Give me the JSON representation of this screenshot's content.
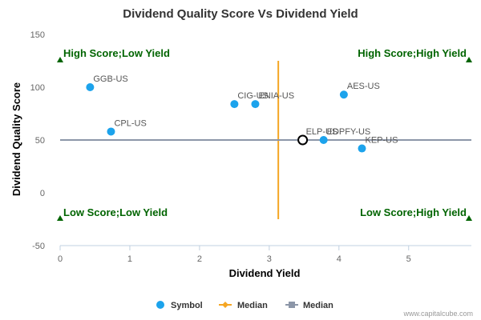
{
  "chart_data": {
    "type": "scatter",
    "title": "Dividend Quality Score Vs Dividend Yield",
    "xlabel": "Dividend Yield",
    "ylabel": "Dividend Quality Score",
    "xlim": [
      0,
      5.9
    ],
    "ylim": [
      -50,
      150
    ],
    "xticks": [
      0,
      1,
      2,
      3,
      4,
      5
    ],
    "yticks": [
      -50,
      0,
      50,
      100,
      150
    ],
    "grid": false,
    "legend_position": "bottom",
    "colors": {
      "points": "#1ca3ec",
      "median_x": "#f5a623",
      "median_y": "#8c96a8",
      "quadrant_text": "#006400",
      "highlight_stroke": "#000000"
    },
    "series": [
      {
        "name": "Symbol",
        "points": [
          {
            "label": "GGB-US",
            "x": 0.43,
            "y": 100
          },
          {
            "label": "CPL-US",
            "x": 0.73,
            "y": 58
          },
          {
            "label": "CIG-US",
            "x": 2.5,
            "y": 84
          },
          {
            "label": "ENIA-US",
            "x": 2.8,
            "y": 84
          },
          {
            "label": "ELP-US",
            "x": 3.48,
            "y": 50,
            "highlighted": true
          },
          {
            "label": "EDPFY-US",
            "x": 3.78,
            "y": 50
          },
          {
            "label": "AES-US",
            "x": 4.07,
            "y": 93
          },
          {
            "label": "KEP-US",
            "x": 4.33,
            "y": 42
          }
        ]
      },
      {
        "name": "Median",
        "orientation": "vertical",
        "x": 3.13,
        "y_range": [
          -25,
          125
        ]
      },
      {
        "name": "Median",
        "orientation": "horizontal",
        "y": 50,
        "x_range": [
          0,
          5.9
        ]
      }
    ],
    "quadrant_labels": [
      {
        "text": "High Score;Low Yield",
        "corner": "top-left"
      },
      {
        "text": "High Score;High Yield",
        "corner": "top-right"
      },
      {
        "text": "Low Score;Low Yield",
        "corner": "bottom-left"
      },
      {
        "text": "Low Score;High Yield",
        "corner": "bottom-right"
      }
    ]
  },
  "credit": "www.capitalcube.com"
}
